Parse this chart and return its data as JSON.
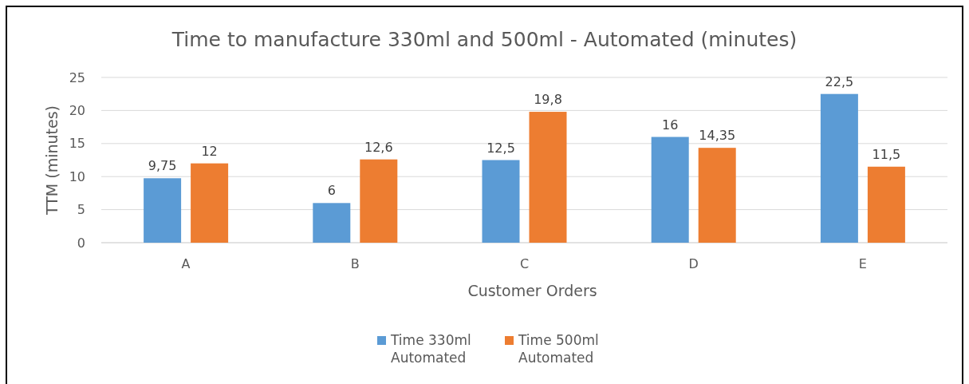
{
  "chart_data": {
    "type": "bar",
    "title": "Time to manufacture 330ml and 500ml - Automated (minutes)",
    "xlabel": "Customer Orders",
    "ylabel": "TTM (minutes)",
    "categories": [
      "A",
      "B",
      "C",
      "D",
      "E"
    ],
    "series": [
      {
        "name": "Time 330ml Automated",
        "color": "#5b9bd5",
        "values": [
          9.75,
          6,
          12.5,
          16,
          22.5
        ],
        "value_labels": [
          "9,75",
          "6",
          "12,5",
          "16",
          "22,5"
        ]
      },
      {
        "name": "Time 500ml Automated",
        "color": "#ed7d31",
        "values": [
          12,
          12.6,
          19.8,
          14.35,
          11.5
        ],
        "value_labels": [
          "12",
          "12,6",
          "19,8",
          "14,35",
          "11,5"
        ]
      }
    ],
    "ylim": [
      0,
      25
    ],
    "yticks": [
      0,
      5,
      10,
      15,
      20,
      25
    ],
    "grid": "y",
    "legend": "bottom"
  }
}
